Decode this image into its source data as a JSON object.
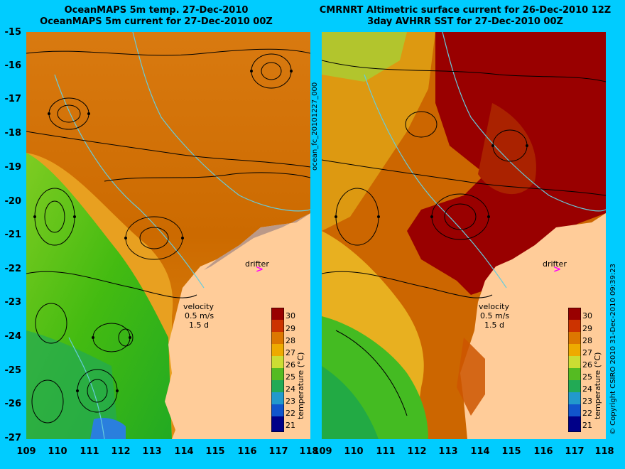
{
  "titles": {
    "left_line1": "OceanMAPS 5m temp. 27-Dec-2010",
    "left_line2": "OceanMAPS 5m current for 27-Dec-2010 00Z",
    "right_line1": "CMRNRT Altimetric surface current for 26-Dec-2010 12Z",
    "right_line2": "3day AVHRR SST for 27-Dec-2010 00Z"
  },
  "y_ticks": [
    "-15",
    "-16",
    "-17",
    "-18",
    "-19",
    "-20",
    "-21",
    "-22",
    "-23",
    "-24",
    "-25",
    "-26",
    "-27"
  ],
  "x_ticks": [
    "109",
    "110",
    "111",
    "112",
    "113",
    "114",
    "115",
    "116",
    "117",
    "118"
  ],
  "right_x_ticks": [
    "109",
    "110",
    "111",
    "112",
    "113",
    "114",
    "115",
    "116",
    "117",
    "118"
  ],
  "vertical_id": "ocean_fc_20101227_000",
  "copyright": "© Copyright CSIRO 2010  31-Dec-2010 09:39:23",
  "drifter_label": "drifter",
  "velocity": {
    "title": "velocity",
    "speed": "0.5 m/s",
    "time": "1.5 d"
  },
  "colorbar": {
    "label": "temperature (°C)",
    "ticks": [
      "30",
      "29",
      "28",
      "27",
      "26",
      "25",
      "24",
      "23",
      "22",
      "21"
    ]
  },
  "colors": {
    "background": "#00ccff",
    "land": "#ffcc99",
    "warm_high": "#990000",
    "warm": "#cc6600",
    "mid": "#ee9900",
    "cool": "#33aa00",
    "cold": "#1155cc",
    "drifter_marker": "#ff00ff"
  }
}
